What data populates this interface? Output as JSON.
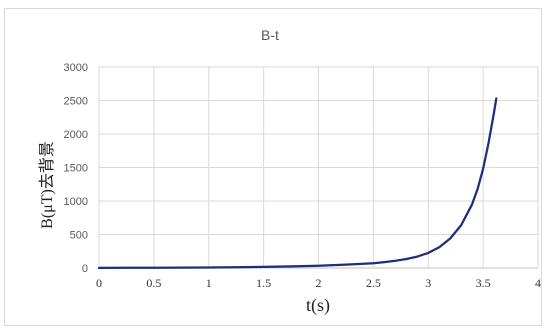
{
  "chart_data": {
    "type": "line",
    "title": "B-t",
    "xlabel": "t(s)",
    "ylabel": "B(μT)去背景",
    "xlim": [
      0,
      4
    ],
    "ylim": [
      0,
      3000
    ],
    "xticks": [
      "0",
      "0.5",
      "1",
      "1.5",
      "2",
      "2.5",
      "3",
      "3.5",
      "4"
    ],
    "yticks": [
      "0",
      "500",
      "1000",
      "1500",
      "2000",
      "2500",
      "3000"
    ],
    "grid": true,
    "legend": "none",
    "series": [
      {
        "color": "#1f2d7a",
        "x": [
          0,
          0.25,
          0.5,
          0.75,
          1.0,
          1.25,
          1.5,
          1.75,
          2.0,
          2.25,
          2.5,
          2.6,
          2.7,
          2.8,
          2.9,
          3.0,
          3.1,
          3.2,
          3.3,
          3.4,
          3.45,
          3.5,
          3.55,
          3.6,
          3.62
        ],
        "y": [
          2,
          3,
          4,
          6,
          8,
          12,
          17,
          24,
          35,
          50,
          72,
          88,
          108,
          135,
          170,
          225,
          310,
          440,
          640,
          950,
          1180,
          1480,
          1870,
          2330,
          2530
        ]
      }
    ]
  }
}
